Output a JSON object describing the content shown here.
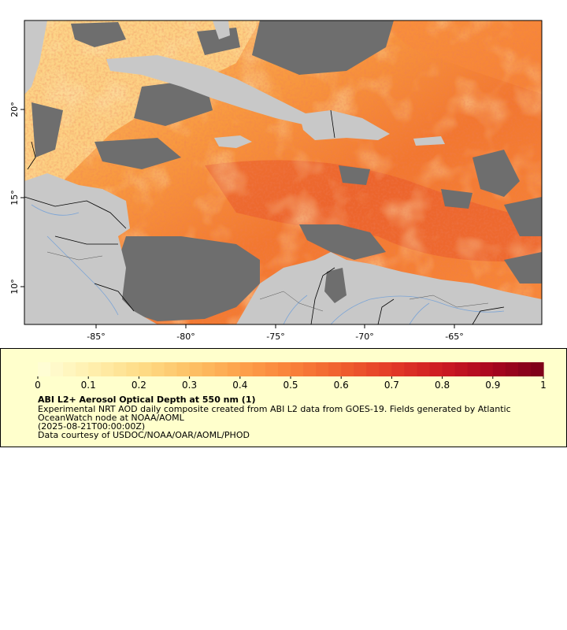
{
  "map": {
    "y_ticks": [
      "20°",
      "15°",
      "10°"
    ],
    "x_ticks": [
      "-85°",
      "-80°",
      "-75°",
      "-70°",
      "-65°"
    ],
    "colors": {
      "land": "#c8c8c8",
      "no_data": "#6e6e6e",
      "border": "#000000",
      "river": "#7ba4d6"
    }
  },
  "legend": {
    "tick_labels": [
      "0",
      "0.1",
      "0.2",
      "0.3",
      "0.4",
      "0.5",
      "0.6",
      "0.7",
      "0.8",
      "0.9",
      "1"
    ],
    "title": "ABI L2+ Aerosol Optical Depth at 550 nm (1)",
    "subtitle_line1": "Experimental NRT AOD daily composite created from ABI L2 data from GOES-19. Fields generated by Atlantic",
    "subtitle_line2": "OceanWatch node at NOAA/AOML",
    "date": "(2025-08-21T00:00:00Z)",
    "credit": "Data courtesy of USDOC/NOAA/OAR/AOML/PHOD",
    "colorscale": [
      "#ffffd9",
      "#fff0b0",
      "#fedd88",
      "#fdc266",
      "#fda24c",
      "#f9823a",
      "#f0602e",
      "#e33a28",
      "#cc1a22",
      "#a8061f",
      "#7a0018"
    ]
  }
}
